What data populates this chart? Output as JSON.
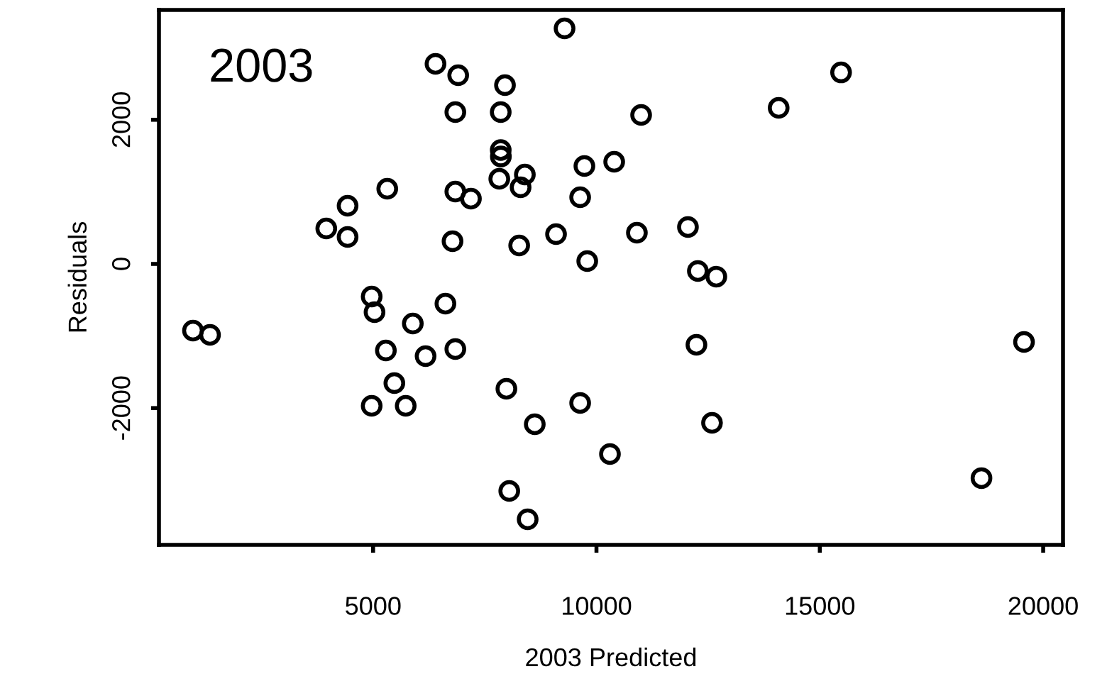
{
  "chart_data": {
    "type": "scatter",
    "title": "2003",
    "xlabel": "2003 Predicted",
    "ylabel": "Residuals",
    "x": [
      9286,
      6397,
      6905,
      7952,
      6841,
      7857,
      7857,
      7860,
      9730,
      10397,
      7825,
      8397,
      8302,
      5317,
      6841,
      7190,
      9635,
      4429,
      3952,
      4429,
      6778,
      8270,
      9095,
      9794,
      15476,
      14079,
      11000,
      10905,
      12048,
      12270,
      12683,
      968,
      1349,
      4968,
      5032,
      5889,
      6619,
      5286,
      6175,
      6841,
      5476,
      4968,
      5730,
      7984,
      8619,
      9635,
      10302,
      8048,
      8460,
      12238,
      19571,
      12587,
      18619
    ],
    "values": [
      3268,
      2776,
      2618,
      2480,
      2106,
      2106,
      1580,
      1490,
      1358,
      1417,
      1181,
      1240,
      1063,
      1043,
      1004,
      906,
      925,
      807,
      492,
      374,
      315,
      256,
      413,
      39,
      2657,
      2165,
      2067,
      433,
      512,
      -98,
      -177,
      -925,
      -984,
      -453,
      -669,
      -827,
      -551,
      -1201,
      -1280,
      -1181,
      -1654,
      -1969,
      -1969,
      -1732,
      -2224,
      -1929,
      -2638,
      -3150,
      -3543,
      -1122,
      -1083,
      -2205,
      -2972
    ],
    "color": "#000000",
    "marker": "circle",
    "grid": false,
    "legend": false,
    "xlim": [
      206,
      20444
    ],
    "ylim": [
      -3898,
      3524
    ],
    "xticks": [
      5000,
      10000,
      15000,
      20000
    ],
    "yticks": [
      -2000,
      0,
      2000
    ]
  }
}
